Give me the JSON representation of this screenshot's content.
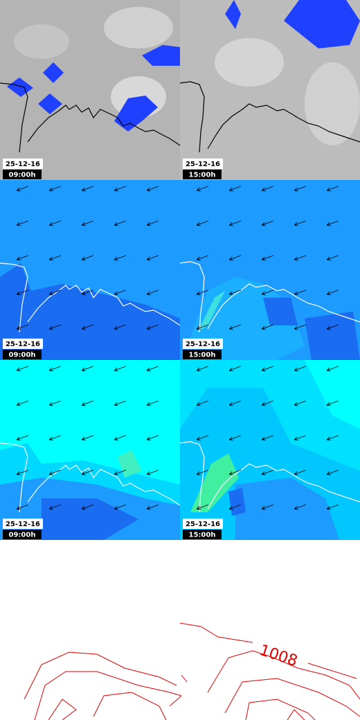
{
  "panels": [
    {
      "date": "25-12-16",
      "time": "09:00h"
    },
    {
      "date": "25-12-16",
      "time": "15:00h"
    },
    {
      "date": "25-12-16",
      "time": "09:00h"
    },
    {
      "date": "25-12-16",
      "time": "15:00h"
    },
    {
      "date": "25-12-16",
      "time": "09:00h"
    },
    {
      "date": "25-12-16",
      "time": "15:00h"
    }
  ],
  "isobar_label": "1008"
}
